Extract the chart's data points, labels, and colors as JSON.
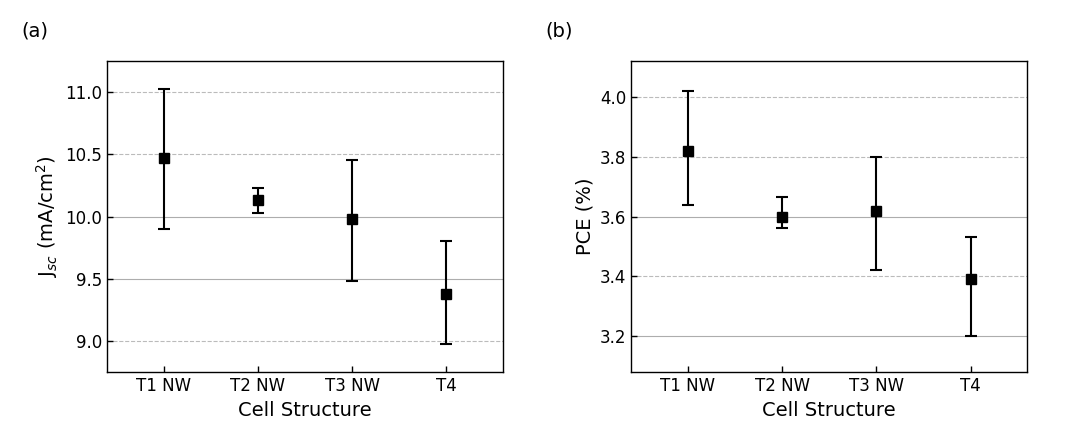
{
  "categories": [
    "T1 NW",
    "T2 NW",
    "T3 NW",
    "T4"
  ],
  "jsc_values": [
    10.47,
    10.13,
    9.98,
    9.38
  ],
  "jsc_yerr_upper": [
    0.55,
    0.1,
    0.47,
    0.42
  ],
  "jsc_yerr_lower": [
    0.57,
    0.1,
    0.5,
    0.4
  ],
  "jsc_ylabel": "J$_{sc}$ (mA/cm$^{2}$)",
  "jsc_ylim": [
    8.75,
    11.25
  ],
  "jsc_yticks": [
    9.0,
    9.5,
    10.0,
    10.5,
    11.0
  ],
  "jsc_grid_solid": [
    10.0,
    9.5
  ],
  "pce_values": [
    3.82,
    3.6,
    3.62,
    3.39
  ],
  "pce_yerr_upper": [
    0.2,
    0.065,
    0.18,
    0.14
  ],
  "pce_yerr_lower": [
    0.18,
    0.04,
    0.2,
    0.19
  ],
  "pce_ylabel": "PCE (%)",
  "pce_ylim": [
    3.08,
    4.12
  ],
  "pce_yticks": [
    3.2,
    3.4,
    3.6,
    3.8,
    4.0
  ],
  "pce_grid_solid": [
    3.6,
    3.2
  ],
  "xlabel": "Cell Structure",
  "panel_a_label": "(a)",
  "panel_b_label": "(b)",
  "marker": "s",
  "marker_size": 7,
  "marker_color": "black",
  "ecolor": "black",
  "elinewidth": 1.5,
  "capsize": 4,
  "grid_color_solid": "#999999",
  "grid_color_dash": "#aaaaaa",
  "grid_linestyle_solid": "-",
  "grid_linestyle_dash": "--",
  "grid_alpha": 0.8,
  "grid_linewidth": 0.8,
  "tick_labelsize": 12,
  "label_fontsize": 14,
  "panel_label_fontsize": 14
}
